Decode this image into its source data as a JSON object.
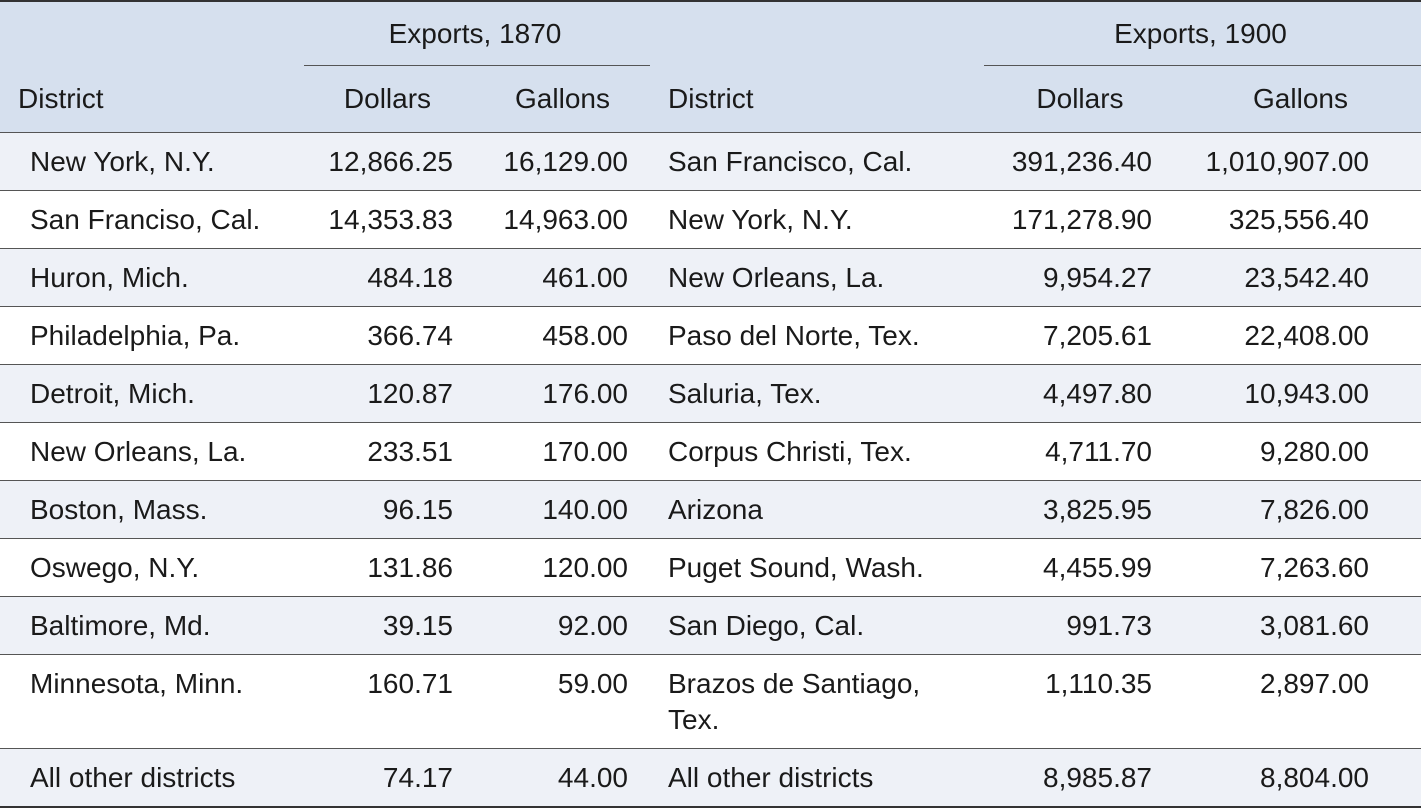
{
  "headers": {
    "group_1870": "Exports, 1870",
    "group_1900": "Exports, 1900",
    "district_1870": "District",
    "dollars_1870": "Dollars",
    "gallons_1870": "Gallons",
    "district_1900": "District",
    "dollars_1900": "Dollars",
    "gallons_1900": "Gallons"
  },
  "rows": [
    {
      "d1870": "New York, N.Y.",
      "dol1870": "12,866.25",
      "gal1870": "16,129.00",
      "d1900": "San Francisco, Cal.",
      "dol1900": "391,236.40",
      "gal1900": "1,010,907.00"
    },
    {
      "d1870": "San Franciso, Cal.",
      "dol1870": "14,353.83",
      "gal1870": "14,963.00",
      "d1900": "New York, N.Y.",
      "dol1900": "171,278.90",
      "gal1900": "325,556.40"
    },
    {
      "d1870": "Huron, Mich.",
      "dol1870": "484.18",
      "gal1870": "461.00",
      "d1900": "New Orleans, La.",
      "dol1900": "9,954.27",
      "gal1900": "23,542.40"
    },
    {
      "d1870": "Philadelphia, Pa.",
      "dol1870": "366.74",
      "gal1870": "458.00",
      "d1900": "Paso del Norte, Tex.",
      "dol1900": "7,205.61",
      "gal1900": "22,408.00"
    },
    {
      "d1870": "Detroit, Mich.",
      "dol1870": "120.87",
      "gal1870": "176.00",
      "d1900": "Saluria, Tex.",
      "dol1900": "4,497.80",
      "gal1900": "10,943.00"
    },
    {
      "d1870": "New Orleans, La.",
      "dol1870": "233.51",
      "gal1870": "170.00",
      "d1900": "Corpus Christi, Tex.",
      "dol1900": "4,711.70",
      "gal1900": "9,280.00"
    },
    {
      "d1870": "Boston, Mass.",
      "dol1870": "96.15",
      "gal1870": "140.00",
      "d1900": "Arizona",
      "dol1900": "3,825.95",
      "gal1900": "7,826.00"
    },
    {
      "d1870": "Oswego, N.Y.",
      "dol1870": "131.86",
      "gal1870": "120.00",
      "d1900": "Puget Sound, Wash.",
      "dol1900": "4,455.99",
      "gal1900": "7,263.60"
    },
    {
      "d1870": "Baltimore, Md.",
      "dol1870": "39.15",
      "gal1870": "92.00",
      "d1900": "San Diego, Cal.",
      "dol1900": "991.73",
      "gal1900": "3,081.60"
    },
    {
      "d1870": "Minnesota, Minn.",
      "dol1870": "160.71",
      "gal1870": "59.00",
      "d1900": "Brazos de Santiago, Tex.",
      "dol1900": "1,110.35",
      "gal1900": "2,897.00"
    },
    {
      "d1870": "All other districts",
      "dol1870": "74.17",
      "gal1870": "44.00",
      "d1900": "All other districts",
      "dol1900": "8,985.87",
      "gal1900": "8,804.00"
    }
  ]
}
